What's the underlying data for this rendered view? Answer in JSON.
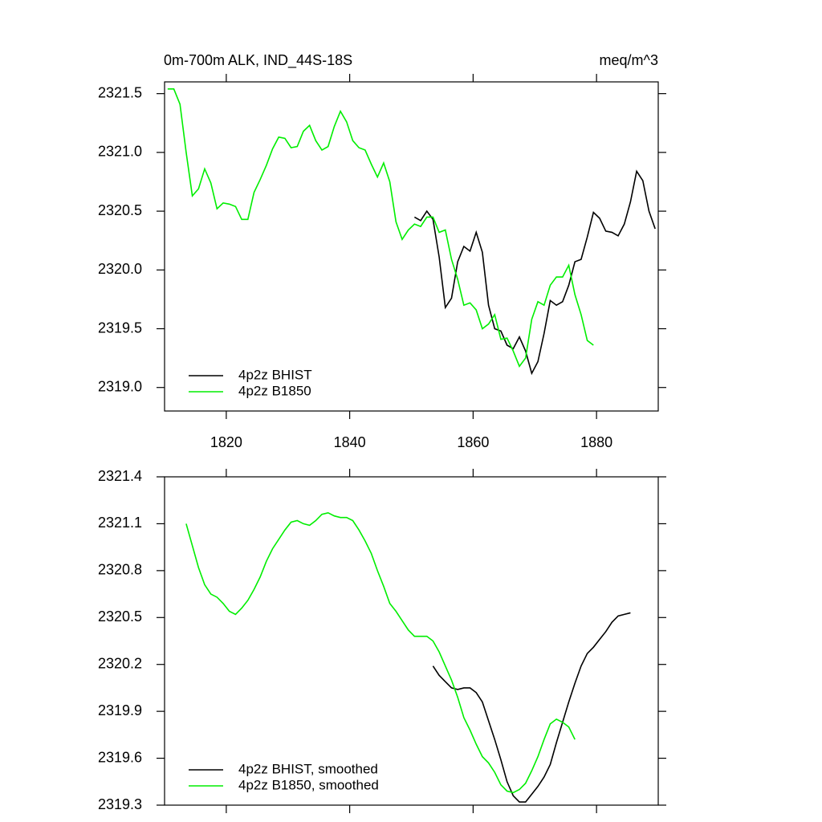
{
  "chart_data": [
    {
      "type": "line",
      "left_title": "0m-700m ALK, IND_44S-18S",
      "right_title": "meq/m^3",
      "x": [
        1810.5,
        1811.5,
        1812.5,
        1813.5,
        1814.5,
        1815.5,
        1816.5,
        1817.5,
        1818.5,
        1819.5,
        1820.5,
        1821.5,
        1822.5,
        1823.5,
        1824.5,
        1825.5,
        1826.5,
        1827.5,
        1828.5,
        1829.5,
        1830.5,
        1831.5,
        1832.5,
        1833.5,
        1834.5,
        1835.5,
        1836.5,
        1837.5,
        1838.5,
        1839.5,
        1840.5,
        1841.5,
        1842.5,
        1843.5,
        1844.5,
        1845.5,
        1846.5,
        1847.5,
        1848.5,
        1849.5,
        1850.5,
        1851.5,
        1852.5,
        1853.5,
        1854.5,
        1855.5,
        1856.5,
        1857.5,
        1858.5,
        1859.5,
        1860.5,
        1861.5,
        1862.5,
        1863.5,
        1864.5,
        1865.5,
        1866.5,
        1867.5,
        1868.5,
        1869.5,
        1870.5,
        1871.5,
        1872.5,
        1873.5,
        1874.5,
        1875.5,
        1876.5,
        1877.5,
        1878.5,
        1879.5,
        1880.5,
        1881.5,
        1882.5,
        1883.5,
        1884.5,
        1885.5,
        1886.5,
        1887.5,
        1888.5,
        1889.5
      ],
      "series": [
        {
          "name": "4p2z BHIST",
          "color": "#000000",
          "values": [
            null,
            null,
            null,
            null,
            null,
            null,
            null,
            null,
            null,
            null,
            null,
            null,
            null,
            null,
            null,
            null,
            null,
            null,
            null,
            null,
            null,
            null,
            null,
            null,
            null,
            null,
            null,
            null,
            null,
            null,
            null,
            null,
            null,
            null,
            null,
            null,
            null,
            null,
            null,
            null,
            2320.45,
            2320.42,
            2320.5,
            2320.43,
            2320.11,
            2319.68,
            2319.76,
            2320.07,
            2320.2,
            2320.16,
            2320.32,
            2320.15,
            2319.7,
            2319.5,
            2319.48,
            2319.36,
            2319.33,
            2319.43,
            2319.31,
            2319.12,
            2319.22,
            2319.46,
            2319.74,
            2319.7,
            2319.73,
            2319.87,
            2320.07,
            2320.09,
            2320.28,
            2320.49,
            2320.44,
            2320.33,
            2320.32,
            2320.29,
            2320.39,
            2320.58,
            2320.84,
            2320.76,
            2320.5,
            2320.35
          ]
        },
        {
          "name": "4p2z B1850",
          "color": "#00ee00",
          "values": [
            2321.54,
            2321.54,
            2321.41,
            2321.0,
            2320.63,
            2320.69,
            2320.86,
            2320.74,
            2320.52,
            2320.57,
            2320.56,
            2320.54,
            2320.43,
            2320.43,
            2320.66,
            2320.77,
            2320.89,
            2321.03,
            2321.13,
            2321.12,
            2321.04,
            2321.05,
            2321.18,
            2321.23,
            2321.1,
            2321.02,
            2321.05,
            2321.22,
            2321.35,
            2321.26,
            2321.1,
            2321.04,
            2321.02,
            2320.9,
            2320.79,
            2320.91,
            2320.75,
            2320.41,
            2320.26,
            2320.34,
            2320.39,
            2320.37,
            2320.45,
            2320.45,
            2320.32,
            2320.34,
            2320.09,
            2319.92,
            2319.7,
            2319.72,
            2319.66,
            2319.5,
            2319.54,
            2319.62,
            2319.41,
            2319.42,
            2319.31,
            2319.18,
            2319.25,
            2319.58,
            2319.73,
            2319.7,
            2319.87,
            2319.94,
            2319.94,
            2320.04,
            2319.79,
            2319.62,
            2319.4,
            2319.36,
            null,
            null,
            null,
            null,
            null,
            null,
            null,
            null,
            null,
            null
          ]
        }
      ],
      "xlim": [
        1810,
        1890
      ],
      "xticks": [
        1820,
        1840,
        1860,
        1880
      ],
      "ylim": [
        2318.8,
        2321.6
      ],
      "yticks": [
        {
          "value": 2319,
          "label": "2319.0"
        },
        2319.5,
        {
          "value": 2320,
          "label": "2320.0"
        },
        2320.5,
        {
          "value": 2321,
          "label": "2321.0"
        },
        2321.5
      ],
      "legend": "lower left"
    },
    {
      "type": "line",
      "x": [
        1810.5,
        1811.5,
        1812.5,
        1813.5,
        1814.5,
        1815.5,
        1816.5,
        1817.5,
        1818.5,
        1819.5,
        1820.5,
        1821.5,
        1822.5,
        1823.5,
        1824.5,
        1825.5,
        1826.5,
        1827.5,
        1828.5,
        1829.5,
        1830.5,
        1831.5,
        1832.5,
        1833.5,
        1834.5,
        1835.5,
        1836.5,
        1837.5,
        1838.5,
        1839.5,
        1840.5,
        1841.5,
        1842.5,
        1843.5,
        1844.5,
        1845.5,
        1846.5,
        1847.5,
        1848.5,
        1849.5,
        1850.5,
        1851.5,
        1852.5,
        1853.5,
        1854.5,
        1855.5,
        1856.5,
        1857.5,
        1858.5,
        1859.5,
        1860.5,
        1861.5,
        1862.5,
        1863.5,
        1864.5,
        1865.5,
        1866.5,
        1867.5,
        1868.5,
        1869.5,
        1870.5,
        1871.5,
        1872.5,
        1873.5,
        1874.5,
        1875.5,
        1876.5,
        1877.5,
        1878.5,
        1879.5,
        1880.5,
        1881.5,
        1882.5,
        1883.5,
        1884.5,
        1885.5,
        1886.5,
        1887.5,
        1888.5,
        1889.5
      ],
      "series": [
        {
          "name": "4p2z BHIST, smoothed",
          "color": "#000000",
          "values": [
            null,
            null,
            null,
            null,
            null,
            null,
            null,
            null,
            null,
            null,
            null,
            null,
            null,
            null,
            null,
            null,
            null,
            null,
            null,
            null,
            null,
            null,
            null,
            null,
            null,
            null,
            null,
            null,
            null,
            null,
            null,
            null,
            null,
            null,
            null,
            null,
            null,
            null,
            null,
            null,
            null,
            null,
            null,
            2320.19,
            2320.13,
            2320.09,
            2320.05,
            2320.04,
            2320.05,
            2320.05,
            2320.02,
            2319.96,
            2319.84,
            2319.72,
            2319.59,
            2319.45,
            2319.36,
            2319.32,
            2319.32,
            2319.37,
            2319.42,
            2319.48,
            2319.56,
            2319.7,
            2319.83,
            2319.96,
            2320.08,
            2320.19,
            2320.27,
            2320.31,
            2320.36,
            2320.41,
            2320.47,
            2320.51,
            2320.52,
            2320.53,
            null,
            null,
            null,
            null
          ]
        },
        {
          "name": "4p2z B1850, smoothed",
          "color": "#00ee00",
          "values": [
            null,
            null,
            null,
            2321.1,
            2320.96,
            2320.82,
            2320.71,
            2320.65,
            2320.63,
            2320.59,
            2320.54,
            2320.52,
            2320.56,
            2320.61,
            2320.68,
            2320.76,
            2320.86,
            2320.94,
            2321.0,
            2321.06,
            2321.11,
            2321.12,
            2321.1,
            2321.09,
            2321.12,
            2321.16,
            2321.17,
            2321.15,
            2321.14,
            2321.14,
            2321.12,
            2321.06,
            2320.99,
            2320.91,
            2320.8,
            2320.7,
            2320.59,
            2320.54,
            2320.48,
            2320.42,
            2320.38,
            2320.38,
            2320.38,
            2320.35,
            2320.28,
            2320.19,
            2320.1,
            2319.99,
            2319.86,
            2319.78,
            2319.69,
            2319.61,
            2319.57,
            2319.51,
            2319.43,
            2319.39,
            2319.38,
            2319.4,
            2319.44,
            2319.52,
            2319.61,
            2319.72,
            2319.82,
            2319.85,
            2319.83,
            2319.8,
            2319.72,
            null,
            null,
            null,
            null,
            null,
            null,
            null,
            null,
            null,
            null,
            null,
            null,
            null
          ]
        }
      ],
      "xlim": [
        1810,
        1890
      ],
      "xticks": [
        1820,
        1840,
        1860,
        1880
      ],
      "ylim": [
        2319.3,
        2321.4
      ],
      "yticks": [
        2319.3,
        2319.6,
        2319.9,
        2320.2,
        2320.5,
        2320.8,
        2321.1,
        2321.4
      ],
      "legend": "lower left"
    }
  ]
}
